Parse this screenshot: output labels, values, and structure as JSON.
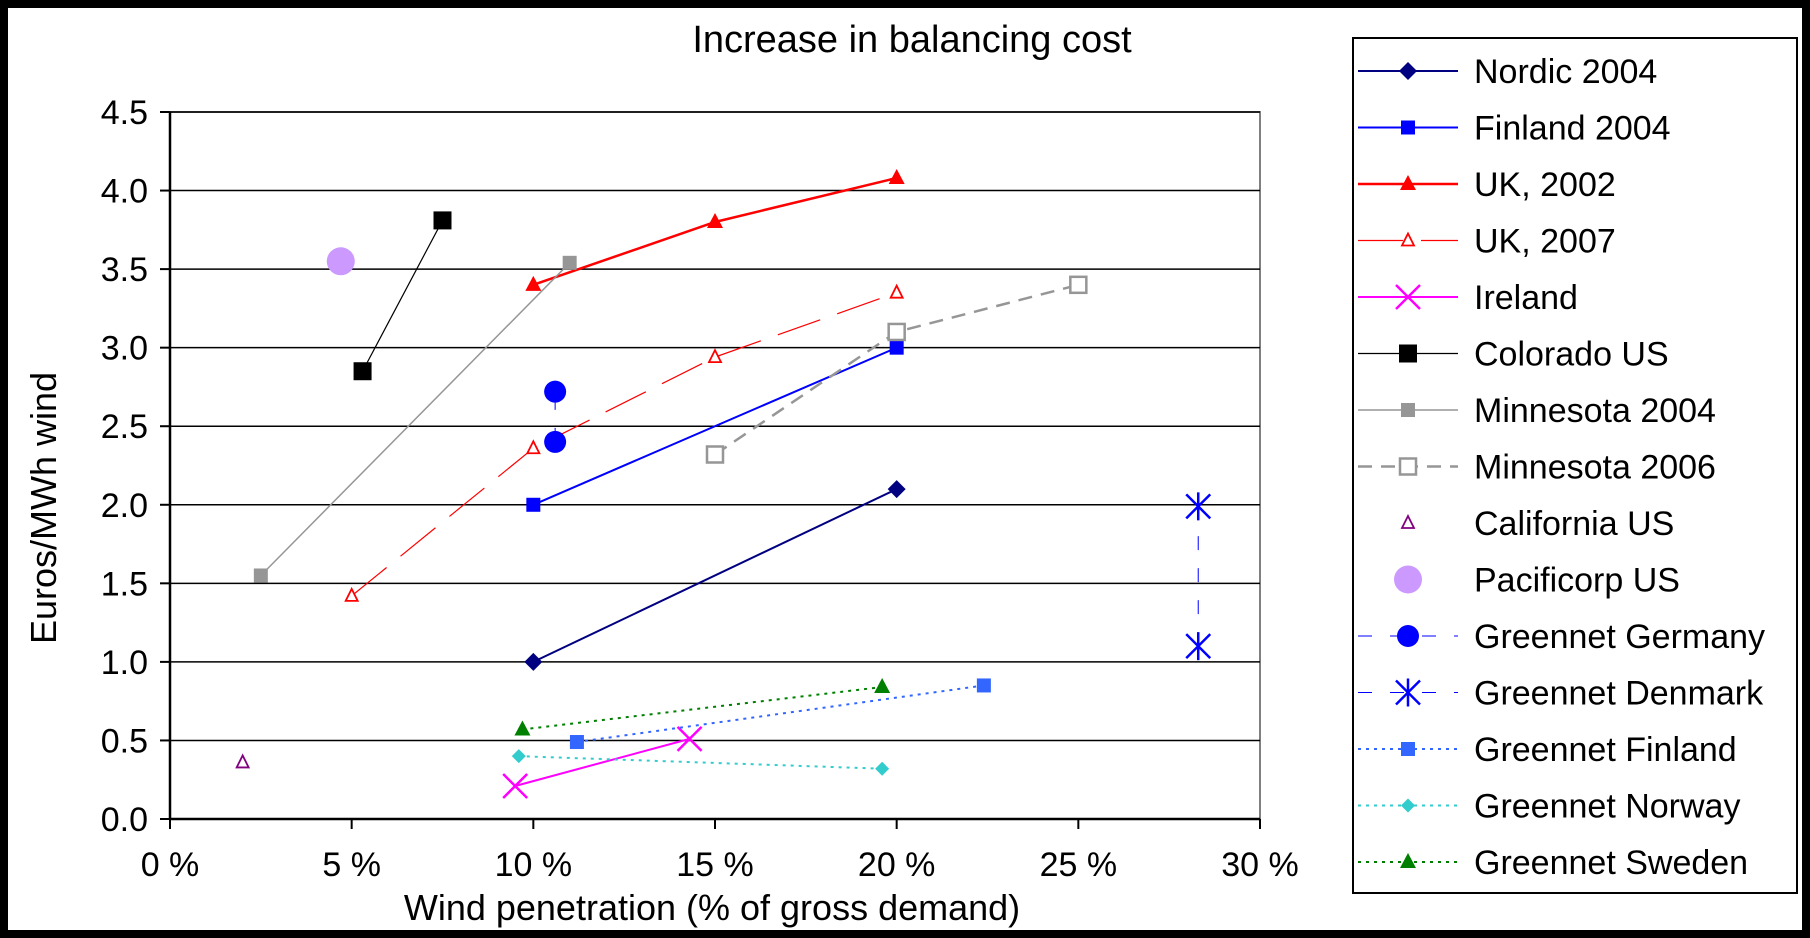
{
  "chart_data": {
    "type": "line",
    "title": "Increase in balancing cost",
    "xlabel": "Wind penetration (% of gross demand)",
    "ylabel": "Euros/MWh wind",
    "xlim": [
      0,
      30
    ],
    "ylim": [
      0,
      4.5
    ],
    "x_ticks": [
      {
        "value": 0,
        "label": "0 %"
      },
      {
        "value": 5,
        "label": "5 %"
      },
      {
        "value": 10,
        "label": "10 %"
      },
      {
        "value": 15,
        "label": "15 %"
      },
      {
        "value": 20,
        "label": "20 %"
      },
      {
        "value": 25,
        "label": "25 %"
      },
      {
        "value": 30,
        "label": "30 %"
      }
    ],
    "y_ticks": [
      {
        "value": 0,
        "label": "0.0"
      },
      {
        "value": 0.5,
        "label": "0.5"
      },
      {
        "value": 1,
        "label": "1.0"
      },
      {
        "value": 1.5,
        "label": "1.5"
      },
      {
        "value": 2,
        "label": "2.0"
      },
      {
        "value": 2.5,
        "label": "2.5"
      },
      {
        "value": 3,
        "label": "3.0"
      },
      {
        "value": 3.5,
        "label": "3.5"
      },
      {
        "value": 4,
        "label": "4.0"
      },
      {
        "value": 4.5,
        "label": "4.5"
      }
    ],
    "grid": "horizontal",
    "legend_position": "right",
    "series": [
      {
        "name": "Nordic 2004",
        "color": "#000080",
        "line": "solid",
        "marker": "diamond",
        "line_width": 2,
        "points": [
          [
            10,
            1.0
          ],
          [
            20,
            2.1
          ]
        ]
      },
      {
        "name": "Finland 2004",
        "color": "#0000ff",
        "line": "solid",
        "marker": "square",
        "line_width": 2,
        "points": [
          [
            10,
            2.0
          ],
          [
            20,
            3.0
          ]
        ]
      },
      {
        "name": "UK, 2002",
        "color": "#ff0000",
        "line": "solid",
        "marker": "triangle",
        "line_width": 2.5,
        "points": [
          [
            10,
            3.4
          ],
          [
            15,
            3.8
          ],
          [
            20,
            4.08
          ]
        ]
      },
      {
        "name": "UK, 2007",
        "color": "#ff0000",
        "line": "dashed-long",
        "marker": "triangle-small-open",
        "line_width": 1.2,
        "points": [
          [
            5,
            1.42
          ],
          [
            10,
            2.36
          ],
          [
            15,
            2.94
          ],
          [
            20,
            3.35
          ]
        ]
      },
      {
        "name": "Ireland",
        "color": "#ff00ff",
        "line": "solid",
        "marker": "x",
        "line_width": 2,
        "points": [
          [
            9.5,
            0.21
          ],
          [
            14.3,
            0.51
          ]
        ]
      },
      {
        "name": "Colorado US",
        "color": "#000000",
        "line": "solid",
        "marker": "square-large",
        "line_width": 1.2,
        "points": [
          [
            5.3,
            2.85
          ],
          [
            7.5,
            3.81
          ]
        ]
      },
      {
        "name": "Minnesota 2004",
        "color": "#969696",
        "line": "solid",
        "marker": "square",
        "line_width": 1.5,
        "points": [
          [
            2.5,
            1.55
          ],
          [
            11,
            3.54
          ]
        ]
      },
      {
        "name": "Minnesota 2006",
        "color": "#969696",
        "line": "dashed",
        "marker": "square-open",
        "line_width": 2.5,
        "points": [
          [
            15,
            2.32
          ],
          [
            20,
            3.1
          ],
          [
            25,
            3.4
          ]
        ]
      },
      {
        "name": "California US",
        "color": "#800080",
        "line": "none",
        "marker": "triangle-small-open",
        "points": [
          [
            2,
            0.36
          ]
        ]
      },
      {
        "name": "Pacificorp US",
        "color": "#cc99ff",
        "line": "none",
        "marker": "circle-large",
        "points": [
          [
            4.7,
            3.55
          ]
        ]
      },
      {
        "name": "Greennet Germany",
        "color": "#0000ff",
        "line": "dashed-sparse",
        "marker": "circle",
        "line_width": 1,
        "points": [
          [
            10.6,
            2.4
          ],
          [
            10.6,
            2.72
          ]
        ]
      },
      {
        "name": "Greennet Denmark",
        "color": "#0000ff",
        "line": "dashed-sparse",
        "marker": "asterisk",
        "line_width": 1,
        "points": [
          [
            28.3,
            1.1
          ],
          [
            28.3,
            1.99
          ]
        ]
      },
      {
        "name": "Greennet Finland",
        "color": "#3366ff",
        "line": "dotted",
        "marker": "square",
        "line_width": 2,
        "points": [
          [
            11.2,
            0.49
          ],
          [
            22.4,
            0.85
          ]
        ]
      },
      {
        "name": "Greennet Norway",
        "color": "#33cccc",
        "line": "dotted",
        "marker": "diamond-small",
        "line_width": 2,
        "points": [
          [
            9.6,
            0.4
          ],
          [
            19.6,
            0.32
          ]
        ]
      },
      {
        "name": "Greennet Sweden",
        "color": "#008000",
        "line": "dotted",
        "marker": "triangle",
        "line_width": 2,
        "points": [
          [
            9.7,
            0.57
          ],
          [
            19.6,
            0.84
          ]
        ]
      }
    ]
  }
}
